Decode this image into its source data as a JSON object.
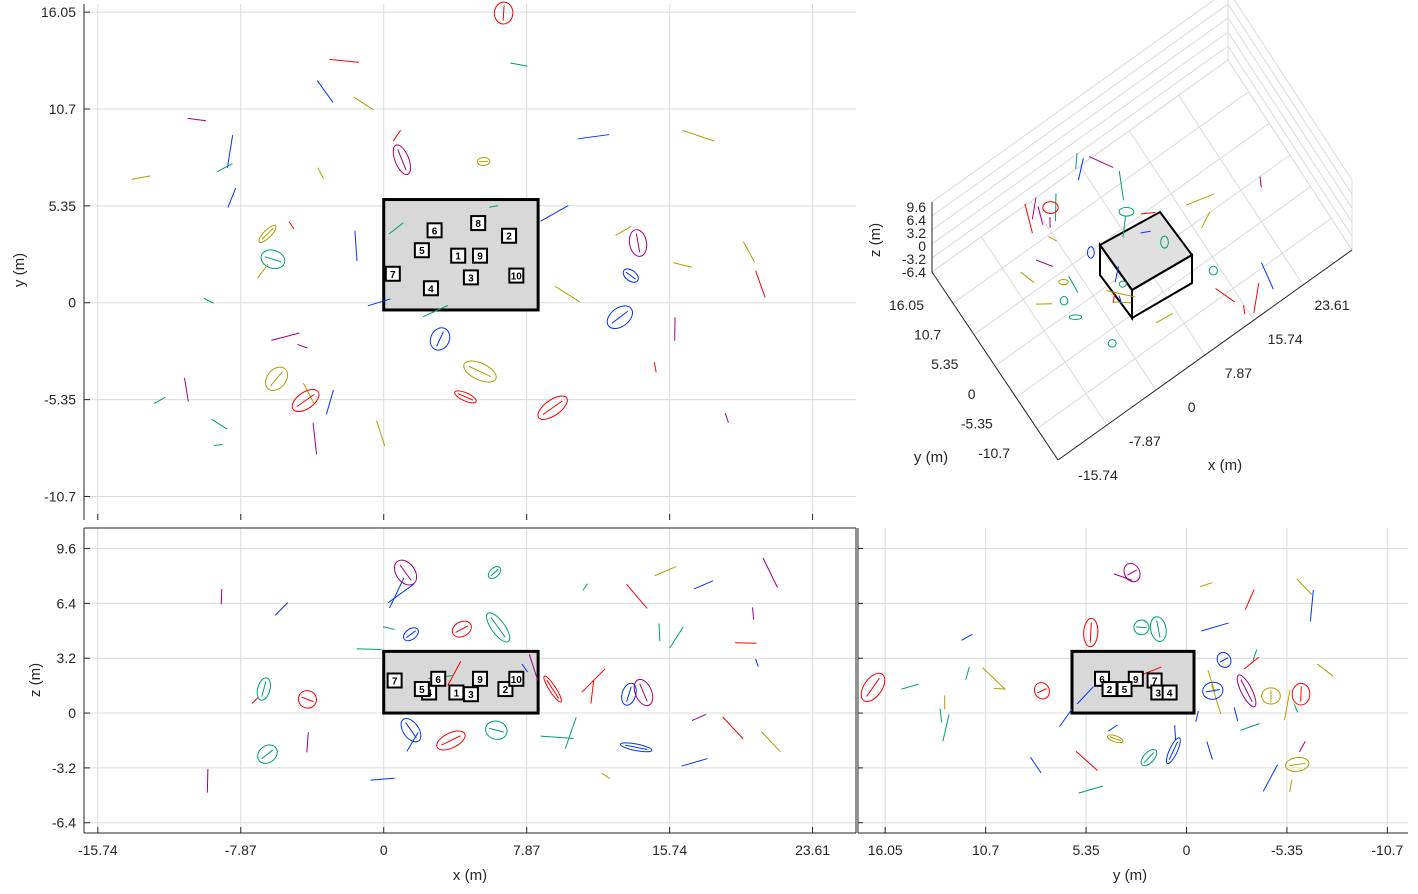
{
  "colors": {
    "red": "#ff0000",
    "blue": "#0033ff",
    "green": "#00a070",
    "olive": "#b0a000",
    "purple": "#a0007f"
  },
  "chart_data": [
    {
      "type": "scatter",
      "view": "top x-y",
      "xlabel": "x (m)",
      "ylabel": "y (m)",
      "xticks": [
        "-15.74",
        "-7.87",
        "0",
        "7.87",
        "15.74",
        "23.61"
      ],
      "yticks": [
        "16.05",
        "10.7",
        "5.35",
        "0",
        "-5.35",
        "-10.7"
      ],
      "xlim": [
        -16.5,
        26
      ],
      "ylim": [
        -12,
        16.5
      ],
      "grid": true,
      "room": {
        "x": [
          0,
          8.5
        ],
        "y": [
          -0.4,
          5.7
        ]
      },
      "node_labels": [
        "1",
        "2",
        "3",
        "4",
        "5",
        "6",
        "7",
        "8",
        "9",
        "10"
      ],
      "nodes": [
        {
          "x": 4.1,
          "y": 2.6
        },
        {
          "x": 6.9,
          "y": 3.7
        },
        {
          "x": 4.8,
          "y": 1.4
        },
        {
          "x": 2.6,
          "y": 0.8
        },
        {
          "x": 2.1,
          "y": 2.9
        },
        {
          "x": 2.8,
          "y": 4.0
        },
        {
          "x": 0.5,
          "y": 1.6
        },
        {
          "x": 5.2,
          "y": 4.4
        },
        {
          "x": 5.3,
          "y": 2.6
        },
        {
          "x": 7.3,
          "y": 1.5
        }
      ],
      "ellipses": [
        {
          "x": 6.6,
          "y": 16.0,
          "c": "red"
        },
        {
          "x": 1.0,
          "y": 7.9,
          "c": "purple"
        },
        {
          "x": 5.5,
          "y": 7.8,
          "c": "olive"
        },
        {
          "x": -6.4,
          "y": 3.8,
          "c": "olive"
        },
        {
          "x": -6.1,
          "y": 2.4,
          "c": "green"
        },
        {
          "x": 14.0,
          "y": 3.3,
          "c": "purple"
        },
        {
          "x": 13.6,
          "y": 1.5,
          "c": "blue"
        },
        {
          "x": 13.0,
          "y": -0.8,
          "c": "blue"
        },
        {
          "x": 3.1,
          "y": -2.0,
          "c": "blue"
        },
        {
          "x": 5.3,
          "y": -3.8,
          "c": "olive"
        },
        {
          "x": -5.9,
          "y": -4.2,
          "c": "olive"
        },
        {
          "x": -4.3,
          "y": -5.4,
          "c": "red"
        },
        {
          "x": 9.3,
          "y": -5.8,
          "c": "red"
        },
        {
          "x": 4.5,
          "y": -5.2,
          "c": "red"
        }
      ]
    },
    {
      "type": "scatter",
      "view": "3d",
      "xlabel": "x (m)",
      "ylabel": "y (m)",
      "zlabel": "z (m)",
      "xticks": [
        "-15.74",
        "-7.87",
        "0",
        "7.87",
        "15.74",
        "23.61"
      ],
      "yticks": [
        "16.05",
        "10.7",
        "5.35",
        "0",
        "-5.35",
        "-10.7"
      ],
      "zticks": [
        "9.6",
        "6.4",
        "3.2",
        "0",
        "-3.2",
        "-6.4"
      ],
      "grid": true
    },
    {
      "type": "scatter",
      "view": "side x-z",
      "xlabel": "x (m)",
      "ylabel": "z (m)",
      "xticks": [
        "-15.74",
        "-7.87",
        "0",
        "7.87",
        "15.74",
        "23.61"
      ],
      "yticks": [
        "9.6",
        "6.4",
        "3.2",
        "0",
        "-3.2",
        "-6.4"
      ],
      "xlim": [
        -16.5,
        26
      ],
      "ylim": [
        -7,
        10.8
      ],
      "grid": true,
      "room": {
        "x": [
          0,
          8.5
        ],
        "z": [
          0,
          3.6
        ]
      },
      "node_labels": [
        "1",
        "2",
        "3",
        "4",
        "5",
        "6",
        "7",
        "9",
        "10"
      ],
      "nodes": [
        {
          "x": 4.0,
          "y": 1.2
        },
        {
          "x": 6.7,
          "y": 1.4
        },
        {
          "x": 4.8,
          "y": 1.1
        },
        {
          "x": 2.5,
          "y": 1.2
        },
        {
          "x": 2.1,
          "y": 1.4
        },
        {
          "x": 3.0,
          "y": 2.0
        },
        {
          "x": 0.6,
          "y": 1.9
        },
        {
          "x": 5.3,
          "y": 2.0
        },
        {
          "x": 7.3,
          "y": 2.0
        }
      ],
      "ellipses": [
        {
          "x": 1.2,
          "y": 8.2,
          "c": "purple"
        },
        {
          "x": 6.1,
          "y": 8.2,
          "c": "green"
        },
        {
          "x": 1.5,
          "y": 4.6,
          "c": "blue"
        },
        {
          "x": 4.3,
          "y": 4.9,
          "c": "red"
        },
        {
          "x": 6.3,
          "y": 5.0,
          "c": "green"
        },
        {
          "x": -6.6,
          "y": 1.4,
          "c": "green"
        },
        {
          "x": -4.2,
          "y": 0.8,
          "c": "red"
        },
        {
          "x": 9.3,
          "y": 1.4,
          "c": "red"
        },
        {
          "x": 13.5,
          "y": 1.1,
          "c": "blue"
        },
        {
          "x": 14.3,
          "y": 1.2,
          "c": "purple"
        },
        {
          "x": 13.9,
          "y": -2.0,
          "c": "blue"
        },
        {
          "x": 6.2,
          "y": -1.0,
          "c": "green"
        },
        {
          "x": 3.7,
          "y": -1.6,
          "c": "red"
        },
        {
          "x": -6.4,
          "y": -2.4,
          "c": "green"
        },
        {
          "x": 1.5,
          "y": -1.0,
          "c": "blue"
        }
      ]
    },
    {
      "type": "scatter",
      "view": "side y-z",
      "xlabel": "y (m)",
      "ylabel": "z (m)",
      "xticks": [
        "16.05",
        "10.7",
        "5.35",
        "0",
        "-5.35",
        "-10.7"
      ],
      "yticks": [
        "9.6",
        "6.4",
        "3.2",
        "0",
        "-3.2",
        "-6.4"
      ],
      "xlim": [
        17.5,
        -11.8
      ],
      "ylim": [
        -7,
        10.8
      ],
      "grid": true,
      "room": {
        "y": [
          -0.4,
          6.1
        ],
        "z": [
          0,
          3.6
        ]
      },
      "node_labels": [
        "6",
        "9",
        "7",
        "2",
        "5",
        "3",
        "4"
      ],
      "nodes": [
        {
          "x": 4.5,
          "y": 2.0
        },
        {
          "x": 2.7,
          "y": 2.0
        },
        {
          "x": 1.7,
          "y": 1.9
        },
        {
          "x": 4.1,
          "y": 1.4
        },
        {
          "x": 3.3,
          "y": 1.4
        },
        {
          "x": 1.5,
          "y": 1.2
        },
        {
          "x": 0.9,
          "y": 1.2
        }
      ],
      "ellipses": [
        {
          "x": 2.9,
          "y": 8.2,
          "c": "purple"
        },
        {
          "x": 5.1,
          "y": 4.7,
          "c": "red"
        },
        {
          "x": 1.5,
          "y": 4.9,
          "c": "green"
        },
        {
          "x": 2.4,
          "y": 5.0,
          "c": "green"
        },
        {
          "x": 16.7,
          "y": 1.5,
          "c": "red"
        },
        {
          "x": 7.7,
          "y": 1.3,
          "c": "red"
        },
        {
          "x": -1.4,
          "y": 1.3,
          "c": "blue"
        },
        {
          "x": -3.2,
          "y": 1.3,
          "c": "purple"
        },
        {
          "x": -6.1,
          "y": 1.1,
          "c": "red"
        },
        {
          "x": -2.0,
          "y": 3.1,
          "c": "blue"
        },
        {
          "x": 2.0,
          "y": -2.6,
          "c": "green"
        },
        {
          "x": 0.7,
          "y": -2.2,
          "c": "blue"
        },
        {
          "x": -5.9,
          "y": -3.0,
          "c": "olive"
        },
        {
          "x": 3.8,
          "y": -1.5,
          "c": "olive"
        },
        {
          "x": -4.5,
          "y": 1.0,
          "c": "olive"
        }
      ]
    }
  ]
}
